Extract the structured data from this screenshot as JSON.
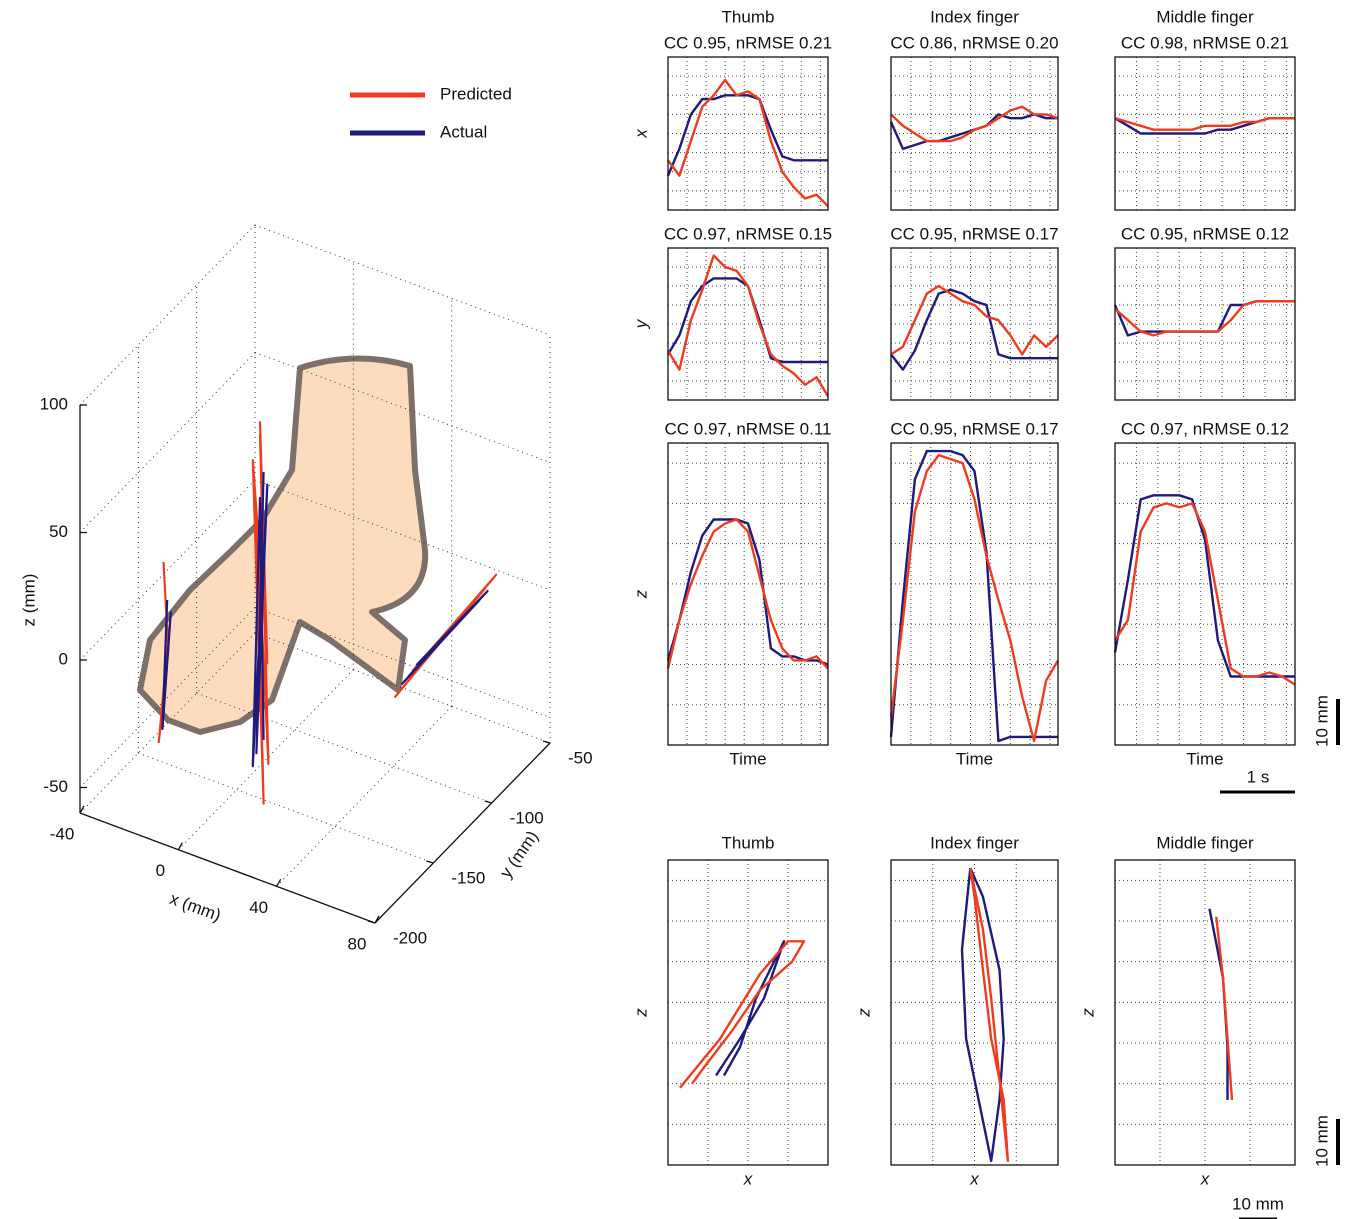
{
  "chart_data": [
    {
      "type": "line3d",
      "xlabel": "x (mm)",
      "ylabel": "y (mm)",
      "zlabel": "z (mm)",
      "xlim": [
        -40,
        80
      ],
      "ylim": [
        -200,
        -50
      ],
      "zlim": [
        -60,
        100
      ],
      "xticks": [
        -40,
        0,
        40,
        80
      ],
      "yticks": [
        -200,
        -150,
        -100,
        -50
      ],
      "zticks": [
        -50,
        0,
        50,
        100
      ],
      "grid": true,
      "legend": "top",
      "series": [
        {
          "name": "Predicted",
          "color": "#f03c1e",
          "x": [
            -25,
            -24,
            -26,
            -23,
            -25,
            null,
            0,
            2,
            -2,
            1,
            -1,
            2,
            0,
            null,
            50,
            75,
            52,
            78,
            55,
            76
          ],
          "y": [
            -160,
            -158,
            -162,
            -159,
            -161,
            null,
            -130,
            -128,
            -132,
            -129,
            -131,
            -127,
            -130,
            null,
            -120,
            -95,
            -118,
            -92,
            -115,
            -90
          ],
          "z": [
            25,
            -10,
            -45,
            0,
            -40,
            null,
            75,
            -20,
            60,
            -75,
            40,
            -60,
            70,
            null,
            -20,
            20,
            -15,
            25,
            -10,
            22
          ]
        },
        {
          "name": "Actual",
          "color": "#1e1a7e",
          "x": [
            -24,
            -25,
            -23,
            -25,
            null,
            1,
            -1,
            2,
            -2,
            0,
            1,
            null,
            52,
            73,
            54,
            75,
            56
          ],
          "y": [
            -159,
            -161,
            -158,
            -160,
            null,
            -129,
            -131,
            -128,
            -132,
            -130,
            -129,
            null,
            -118,
            -96,
            -116,
            -93,
            -114
          ],
          "z": [
            10,
            -40,
            5,
            -35,
            null,
            55,
            -55,
            50,
            -60,
            45,
            -50,
            null,
            -15,
            15,
            -12,
            18,
            -8
          ]
        }
      ]
    },
    {
      "type": "line",
      "title": "Thumb",
      "subtitle": "CC 0.95, nRMSE 0.21",
      "ylabel": "x",
      "x": [
        0,
        0.15,
        0.3,
        0.45,
        0.6,
        0.75,
        0.9,
        1.05,
        1.2,
        1.35,
        1.5,
        1.65,
        1.8,
        1.95,
        2.1
      ],
      "xlim": [
        0,
        2.1
      ],
      "xticks": [
        0.25,
        0.5,
        0.75,
        1,
        1.25,
        1.5,
        1.75,
        2
      ],
      "ylim": [
        0,
        40
      ],
      "yticks": [
        5,
        10,
        15,
        20,
        25,
        30,
        35
      ],
      "grid": true,
      "series": [
        {
          "color": "#1e1a7e",
          "values": [
            9,
            16,
            25,
            29,
            29,
            30,
            30,
            30,
            29,
            21,
            14,
            13,
            13,
            13,
            13
          ]
        },
        {
          "color": "#f03c1e",
          "values": [
            13,
            9,
            18,
            27,
            30,
            34,
            30,
            31,
            29,
            18,
            10,
            6,
            3,
            4,
            1
          ]
        }
      ]
    },
    {
      "type": "line",
      "title": "Index finger",
      "subtitle": "CC 0.86, nRMSE 0.20",
      "x": [
        0,
        0.15,
        0.3,
        0.45,
        0.6,
        0.75,
        0.9,
        1.05,
        1.2,
        1.35,
        1.5,
        1.65,
        1.8,
        1.95,
        2.1
      ],
      "xlim": [
        0,
        2.1
      ],
      "xticks": [
        0.25,
        0.5,
        0.75,
        1,
        1.25,
        1.5,
        1.75,
        2
      ],
      "ylim": [
        0,
        40
      ],
      "yticks": [
        5,
        10,
        15,
        20,
        25,
        30,
        35
      ],
      "grid": true,
      "series": [
        {
          "color": "#1e1a7e",
          "values": [
            23,
            16,
            17,
            18,
            18,
            19,
            20,
            21,
            22,
            25,
            24,
            24,
            25,
            24,
            24
          ]
        },
        {
          "color": "#f03c1e",
          "values": [
            25,
            22,
            20,
            18,
            18,
            18,
            19,
            21,
            22,
            24,
            26,
            27,
            25,
            25,
            24
          ]
        }
      ]
    },
    {
      "type": "line",
      "title": "Middle finger",
      "subtitle": "CC 0.98, nRMSE 0.21",
      "x": [
        0,
        0.15,
        0.3,
        0.45,
        0.6,
        0.75,
        0.9,
        1.05,
        1.2,
        1.35,
        1.5,
        1.65,
        1.8,
        1.95,
        2.1
      ],
      "xlim": [
        0,
        2.1
      ],
      "xticks": [
        0.25,
        0.5,
        0.75,
        1,
        1.25,
        1.5,
        1.75,
        2
      ],
      "ylim": [
        0,
        40
      ],
      "yticks": [
        5,
        10,
        15,
        20,
        25,
        30,
        35
      ],
      "grid": true,
      "series": [
        {
          "color": "#1e1a7e",
          "values": [
            24,
            22,
            20,
            20,
            20,
            20,
            20,
            20,
            21,
            21,
            22,
            23,
            24,
            24,
            24
          ]
        },
        {
          "color": "#f03c1e",
          "values": [
            24,
            23,
            22,
            21,
            21,
            21,
            21,
            22,
            22,
            22,
            23,
            23,
            24,
            24,
            24
          ]
        }
      ]
    },
    {
      "type": "line",
      "subtitle": "CC 0.97, nRMSE 0.15",
      "ylabel": "y",
      "x": [
        0,
        0.15,
        0.3,
        0.45,
        0.6,
        0.75,
        0.9,
        1.05,
        1.2,
        1.35,
        1.5,
        1.65,
        1.8,
        1.95,
        2.1
      ],
      "xlim": [
        0,
        2.1
      ],
      "xticks": [
        0.25,
        0.5,
        0.75,
        1,
        1.25,
        1.5,
        1.75,
        2
      ],
      "ylim": [
        0,
        40
      ],
      "yticks": [
        5,
        10,
        15,
        20,
        25,
        30,
        35
      ],
      "grid": true,
      "series": [
        {
          "color": "#1e1a7e",
          "values": [
            12,
            17,
            26,
            30,
            32,
            32,
            32,
            30,
            21,
            11,
            10,
            10,
            10,
            10,
            10
          ]
        },
        {
          "color": "#f03c1e",
          "values": [
            13,
            8,
            21,
            29,
            38,
            35,
            34,
            30,
            20,
            12,
            9,
            7,
            4,
            6,
            1
          ]
        }
      ]
    },
    {
      "type": "line",
      "subtitle": "CC 0.95, nRMSE 0.17",
      "x": [
        0,
        0.15,
        0.3,
        0.45,
        0.6,
        0.75,
        0.9,
        1.05,
        1.2,
        1.35,
        1.5,
        1.65,
        1.8,
        1.95,
        2.1
      ],
      "xlim": [
        0,
        2.1
      ],
      "xticks": [
        0.25,
        0.5,
        0.75,
        1,
        1.25,
        1.5,
        1.75,
        2
      ],
      "ylim": [
        0,
        40
      ],
      "yticks": [
        5,
        10,
        15,
        20,
        25,
        30,
        35
      ],
      "grid": true,
      "series": [
        {
          "color": "#1e1a7e",
          "values": [
            12,
            8,
            13,
            21,
            28,
            29,
            28,
            26,
            25,
            12,
            11,
            11,
            11,
            11,
            11
          ]
        },
        {
          "color": "#f03c1e",
          "values": [
            12,
            14,
            21,
            28,
            30,
            28,
            26,
            25,
            22,
            21,
            17,
            12,
            17,
            14,
            17
          ]
        }
      ]
    },
    {
      "type": "line",
      "subtitle": "CC 0.95, nRMSE 0.12",
      "x": [
        0,
        0.15,
        0.3,
        0.45,
        0.6,
        0.75,
        0.9,
        1.05,
        1.2,
        1.35,
        1.5,
        1.65,
        1.8,
        1.95,
        2.1
      ],
      "xlim": [
        0,
        2.1
      ],
      "xticks": [
        0.25,
        0.5,
        0.75,
        1,
        1.25,
        1.5,
        1.75,
        2
      ],
      "ylim": [
        0,
        40
      ],
      "yticks": [
        5,
        10,
        15,
        20,
        25,
        30,
        35
      ],
      "grid": true,
      "series": [
        {
          "color": "#1e1a7e",
          "values": [
            25,
            17,
            18,
            18,
            18,
            18,
            18,
            18,
            18,
            25,
            25,
            26,
            26,
            26,
            26
          ]
        },
        {
          "color": "#f03c1e",
          "values": [
            24,
            21,
            18,
            17,
            18,
            18,
            18,
            18,
            18,
            21,
            25,
            26,
            26,
            26,
            26
          ]
        }
      ]
    },
    {
      "type": "line",
      "subtitle": "CC 0.97, nRMSE 0.11",
      "ylabel": "z",
      "xlabel": "Time",
      "x": [
        0,
        0.15,
        0.3,
        0.45,
        0.6,
        0.75,
        0.9,
        1.05,
        1.2,
        1.35,
        1.5,
        1.65,
        1.8,
        1.95,
        2.1
      ],
      "xlim": [
        0,
        2.1
      ],
      "xticks": [
        0.25,
        0.5,
        0.75,
        1,
        1.25,
        1.5,
        1.75,
        2
      ],
      "ylim": [
        0,
        75
      ],
      "yticks": [
        10,
        20,
        30,
        40,
        50,
        60,
        70
      ],
      "grid": true,
      "series": [
        {
          "color": "#1e1a7e",
          "values": [
            21,
            31,
            43,
            52,
            56,
            56,
            56,
            55,
            46,
            24,
            22,
            22,
            21,
            21,
            20
          ]
        },
        {
          "color": "#f03c1e",
          "values": [
            19,
            31,
            40,
            47,
            53,
            55,
            56,
            53,
            42,
            31,
            24,
            21,
            21,
            22,
            19
          ]
        }
      ]
    },
    {
      "type": "line",
      "subtitle": "CC 0.95, nRMSE 0.17",
      "xlabel": "Time",
      "x": [
        0,
        0.15,
        0.3,
        0.45,
        0.6,
        0.75,
        0.9,
        1.05,
        1.2,
        1.35,
        1.5,
        1.65,
        1.8,
        1.95,
        2.1
      ],
      "xlim": [
        0,
        2.1
      ],
      "xticks": [
        0.25,
        0.5,
        0.75,
        1,
        1.25,
        1.5,
        1.75,
        2
      ],
      "ylim": [
        0,
        75
      ],
      "yticks": [
        10,
        20,
        30,
        40,
        50,
        60,
        70
      ],
      "grid": true,
      "series": [
        {
          "color": "#1e1a7e",
          "values": [
            2,
            36,
            66,
            73,
            73,
            73,
            72,
            68,
            48,
            1,
            2,
            2,
            2,
            2,
            2
          ]
        },
        {
          "color": "#f03c1e",
          "values": [
            7,
            31,
            58,
            68,
            72,
            71,
            70,
            61,
            47,
            36,
            26,
            12,
            1,
            16,
            21
          ]
        }
      ]
    },
    {
      "type": "line",
      "subtitle": "CC 0.97, nRMSE 0.12",
      "xlabel": "Time",
      "annotations": [
        "10 mm",
        "1 s"
      ],
      "x": [
        0,
        0.15,
        0.3,
        0.45,
        0.6,
        0.75,
        0.9,
        1.05,
        1.2,
        1.35,
        1.5,
        1.65,
        1.8,
        1.95,
        2.1
      ],
      "xlim": [
        0,
        2.1
      ],
      "xticks": [
        0.25,
        0.5,
        0.75,
        1,
        1.25,
        1.5,
        1.75,
        2
      ],
      "ylim": [
        0,
        75
      ],
      "yticks": [
        10,
        20,
        30,
        40,
        50,
        60,
        70
      ],
      "grid": true,
      "series": [
        {
          "color": "#1e1a7e",
          "values": [
            23,
            41,
            61,
            62,
            62,
            62,
            61,
            51,
            26,
            17,
            17,
            17,
            17,
            17,
            17
          ]
        },
        {
          "color": "#f03c1e",
          "values": [
            26,
            31,
            53,
            59,
            60,
            59,
            60,
            53,
            36,
            19,
            17,
            17,
            18,
            17,
            15
          ]
        }
      ]
    },
    {
      "type": "line",
      "title": "Thumb",
      "xlabel": "x",
      "ylabel": "z",
      "xlim": [
        0,
        40
      ],
      "xticks": [
        10,
        20,
        30
      ],
      "ylim": [
        0,
        75
      ],
      "yticks": [
        10,
        20,
        30,
        40,
        50,
        60,
        70
      ],
      "grid": true,
      "series": [
        {
          "color": "#1e1a7e",
          "x": [
            12,
            18,
            24,
            29,
            27,
            22,
            18,
            14
          ],
          "values": [
            22,
            31,
            41,
            55,
            51,
            41,
            29,
            22
          ]
        },
        {
          "color": "#f03c1e",
          "x": [
            3,
            13,
            23,
            30,
            34,
            31,
            23,
            16,
            9,
            6
          ],
          "values": [
            19,
            31,
            47,
            55,
            55,
            50,
            43,
            33,
            24,
            20
          ]
        }
      ]
    },
    {
      "type": "line",
      "title": "Index finger",
      "xlabel": "x",
      "ylabel": "z",
      "xlim": [
        0,
        40
      ],
      "xticks": [
        10,
        20,
        30
      ],
      "ylim": [
        0,
        75
      ],
      "yticks": [
        10,
        20,
        30,
        40,
        50,
        60,
        70
      ],
      "grid": true,
      "series": [
        {
          "color": "#1e1a7e",
          "x": [
            19,
            17,
            18,
            24,
            26,
            27,
            26,
            22,
            19
          ],
          "values": [
            73,
            53,
            31,
            1,
            16,
            31,
            48,
            66,
            73
          ]
        },
        {
          "color": "#f03c1e",
          "x": [
            19,
            22,
            24,
            26,
            28,
            27,
            24,
            22,
            20,
            19
          ],
          "values": [
            73,
            58,
            41,
            21,
            1,
            16,
            31,
            48,
            66,
            73
          ]
        }
      ]
    },
    {
      "type": "line",
      "title": "Middle finger",
      "xlabel": "x",
      "ylabel": "z",
      "annotations": [
        "10 mm",
        "10 mm"
      ],
      "xlim": [
        0,
        40
      ],
      "xticks": [
        10,
        20,
        30
      ],
      "ylim": [
        0,
        75
      ],
      "yticks": [
        10,
        20,
        30,
        40,
        50,
        60,
        70
      ],
      "grid": true,
      "series": [
        {
          "color": "#1e1a7e",
          "x": [
            21,
            24,
            25,
            25
          ],
          "values": [
            63,
            46,
            29,
            16
          ]
        },
        {
          "color": "#f03c1e",
          "x": [
            22.5,
            24,
            25,
            26
          ],
          "values": [
            61,
            46,
            31,
            16
          ]
        }
      ]
    }
  ]
}
